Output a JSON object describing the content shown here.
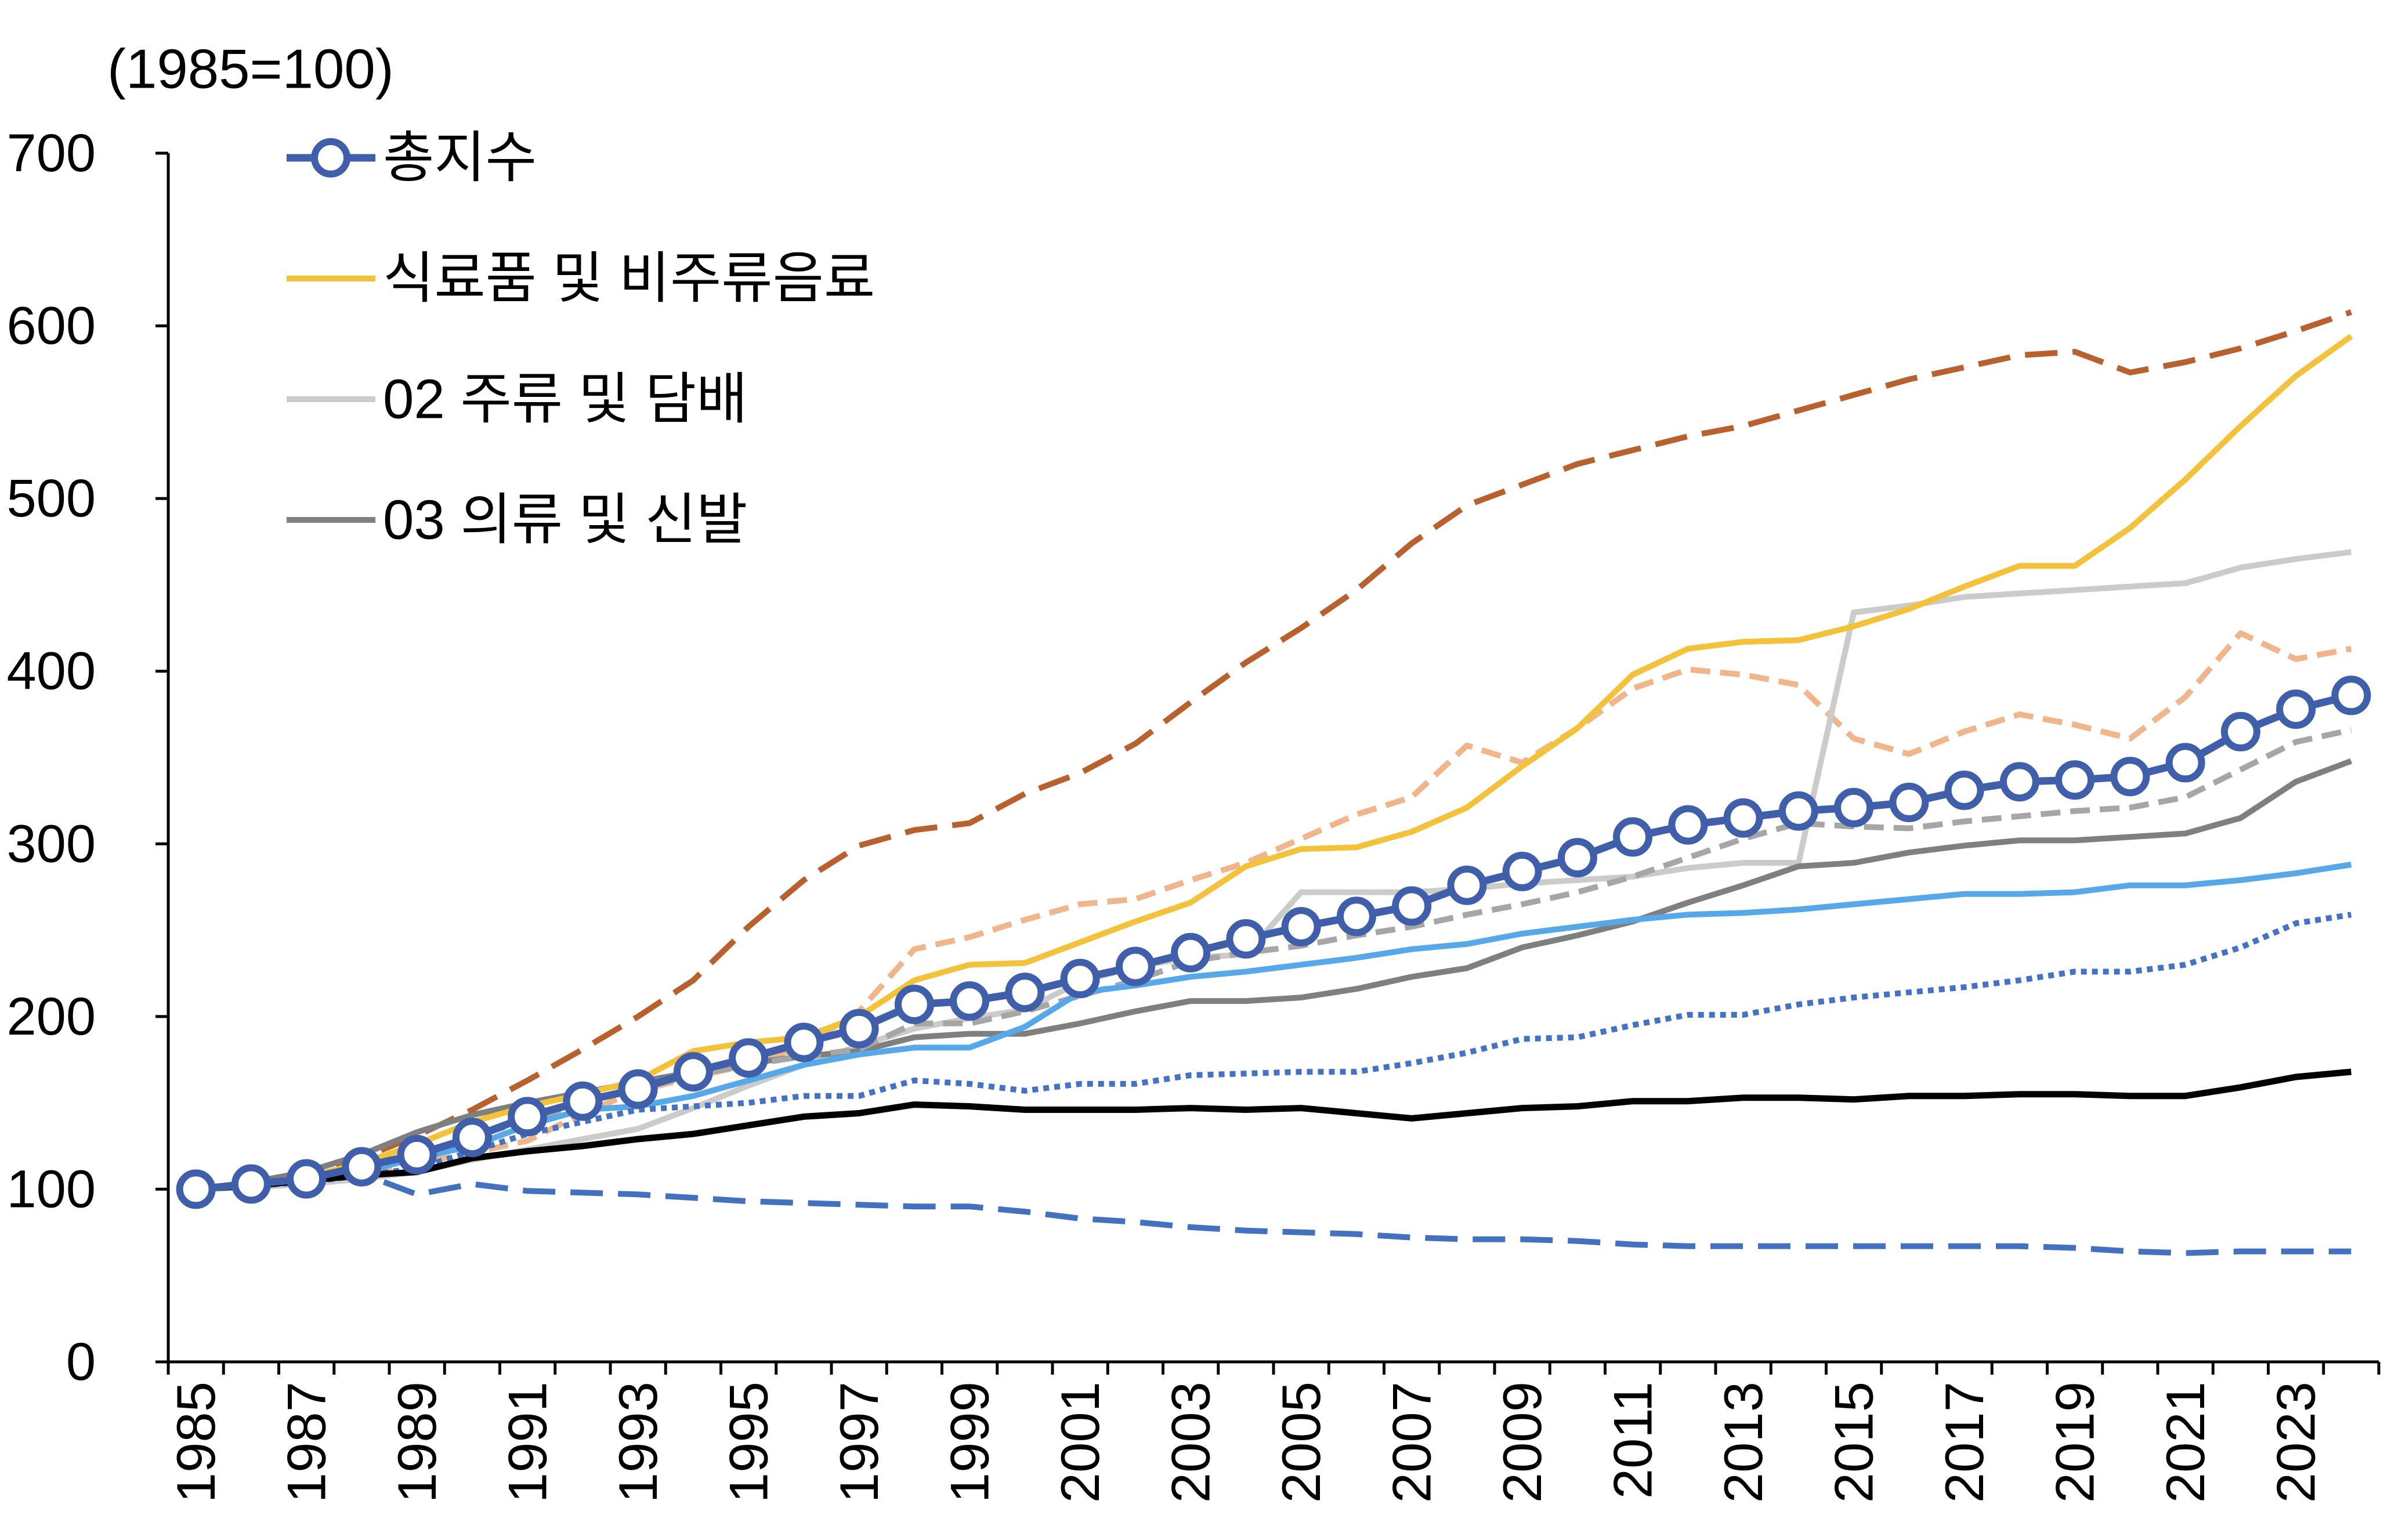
{
  "chart_data": {
    "type": "line",
    "ylabel": "(1985=100)",
    "ylim": [
      0,
      700
    ],
    "yticks": [
      0,
      100,
      200,
      300,
      400,
      500,
      600,
      700
    ],
    "x": [
      1985,
      1986,
      1987,
      1988,
      1989,
      1990,
      1991,
      1992,
      1993,
      1994,
      1995,
      1996,
      1997,
      1998,
      1999,
      2000,
      2001,
      2002,
      2003,
      2004,
      2005,
      2006,
      2007,
      2008,
      2009,
      2010,
      2011,
      2012,
      2013,
      2014,
      2015,
      2016,
      2017,
      2018,
      2019,
      2020,
      2021,
      2022,
      2023,
      2024
    ],
    "xtick_labels": [
      "1985",
      "1987",
      "1989",
      "1991",
      "1993",
      "1995",
      "1997",
      "1999",
      "2001",
      "2003",
      "2005",
      "2007",
      "2009",
      "2011",
      "2013",
      "2015",
      "2017",
      "2019",
      "2021",
      "2023"
    ],
    "grid": false,
    "legend_position": "top-left",
    "series": [
      {
        "name": "총지수",
        "color": "#3F5FAA",
        "dash": "solid",
        "marker": "circle",
        "values": [
          100,
          103,
          106,
          113,
          120,
          130,
          142,
          151,
          158,
          168,
          176,
          185,
          193,
          207,
          209,
          214,
          222,
          229,
          237,
          245,
          252,
          258,
          264,
          276,
          284,
          292,
          304,
          311,
          315,
          319,
          321,
          324,
          331,
          336,
          337,
          339,
          347,
          365,
          378,
          386
        ]
      },
      {
        "name": "식료품 및 비주류음료",
        "color": "#F3C13A",
        "dash": "solid",
        "values": [
          100,
          103,
          107,
          115,
          126,
          139,
          148,
          155,
          163,
          180,
          185,
          188,
          200,
          221,
          230,
          231,
          243,
          255,
          266,
          287,
          297,
          298,
          307,
          321,
          345,
          367,
          398,
          413,
          417,
          418,
          426,
          436,
          449,
          461,
          461,
          483,
          511,
          542,
          571,
          594
        ]
      },
      {
        "name": "02 주류 및 담배",
        "color": "#CBCBCB",
        "dash": "solid",
        "values": [
          100,
          101,
          103,
          106,
          110,
          117,
          123,
          129,
          135,
          147,
          160,
          172,
          183,
          193,
          199,
          204,
          220,
          229,
          234,
          236,
          272,
          272,
          272,
          274,
          277,
          279,
          281,
          286,
          289,
          289,
          434,
          438,
          443,
          445,
          447,
          449,
          451,
          460,
          465,
          469
        ]
      },
      {
        "name": "03 의류 및 신발",
        "color": "#7F7F7F",
        "dash": "solid",
        "values": [
          100,
          104,
          110,
          120,
          133,
          143,
          150,
          156,
          162,
          168,
          173,
          177,
          180,
          188,
          190,
          190,
          196,
          203,
          209,
          209,
          211,
          216,
          223,
          228,
          240,
          247,
          255,
          266,
          276,
          287,
          289,
          295,
          299,
          302,
          302,
          304,
          306,
          315,
          336,
          348
        ]
      },
      {
        "color": "#B9612E",
        "dash": "long-dash",
        "values": [
          100,
          103,
          108,
          118,
          131,
          146,
          163,
          181,
          200,
          221,
          252,
          279,
          299,
          308,
          312,
          329,
          341,
          358,
          382,
          405,
          425,
          447,
          474,
          496,
          508,
          520,
          528,
          536,
          542,
          551,
          560,
          569,
          576,
          583,
          585,
          573,
          579,
          587,
          597,
          608
        ]
      },
      {
        "color": "#F0B58A",
        "dash": "dash",
        "values": [
          100,
          102,
          105,
          110,
          115,
          121,
          128,
          144,
          157,
          165,
          172,
          183,
          203,
          239,
          246,
          256,
          265,
          268,
          279,
          289,
          303,
          317,
          327,
          357,
          347,
          367,
          390,
          401,
          398,
          392,
          361,
          352,
          365,
          375,
          369,
          361,
          385,
          422,
          407,
          413
        ]
      },
      {
        "color": "#A6A6A6",
        "dash": "dash",
        "values": [
          100,
          103,
          106,
          112,
          120,
          130,
          140,
          150,
          158,
          166,
          172,
          177,
          181,
          196,
          196,
          203,
          212,
          221,
          232,
          237,
          241,
          247,
          252,
          259,
          265,
          272,
          281,
          292,
          303,
          312,
          310,
          309,
          313,
          316,
          319,
          321,
          327,
          343,
          359,
          366
        ]
      },
      {
        "color": "#56A8E8",
        "dash": "solid",
        "values": [
          100,
          102,
          105,
          110,
          118,
          125,
          137,
          146,
          148,
          154,
          163,
          172,
          178,
          182,
          182,
          194,
          214,
          218,
          223,
          226,
          230,
          234,
          239,
          242,
          248,
          252,
          256,
          259,
          260,
          262,
          265,
          268,
          271,
          271,
          272,
          276,
          276,
          279,
          283,
          288
        ]
      },
      {
        "color": "#4472C4",
        "dash": "round-dot",
        "values": [
          100,
          102,
          104,
          108,
          112,
          122,
          132,
          139,
          146,
          148,
          150,
          154,
          154,
          163,
          161,
          157,
          161,
          161,
          166,
          167,
          168,
          168,
          173,
          179,
          187,
          188,
          195,
          201,
          201,
          207,
          211,
          214,
          217,
          221,
          226,
          226,
          230,
          240,
          254,
          259
        ]
      },
      {
        "color": "#000000",
        "dash": "solid",
        "values": [
          100,
          102,
          105,
          108,
          110,
          118,
          122,
          125,
          129,
          132,
          137,
          142,
          144,
          149,
          148,
          146,
          146,
          146,
          147,
          146,
          147,
          144,
          141,
          144,
          147,
          148,
          151,
          151,
          153,
          153,
          152,
          154,
          154,
          155,
          155,
          154,
          154,
          159,
          165,
          168
        ]
      },
      {
        "color": "#4470C0",
        "dash": "long-dash",
        "values": [
          100,
          102,
          104,
          109,
          97,
          103,
          99,
          98,
          97,
          95,
          93,
          92,
          91,
          90,
          90,
          87,
          83,
          81,
          78,
          76,
          75,
          74,
          72,
          71,
          71,
          70,
          68,
          67,
          67,
          67,
          67,
          67,
          67,
          67,
          66,
          64,
          63,
          64,
          64,
          64
        ]
      }
    ]
  }
}
